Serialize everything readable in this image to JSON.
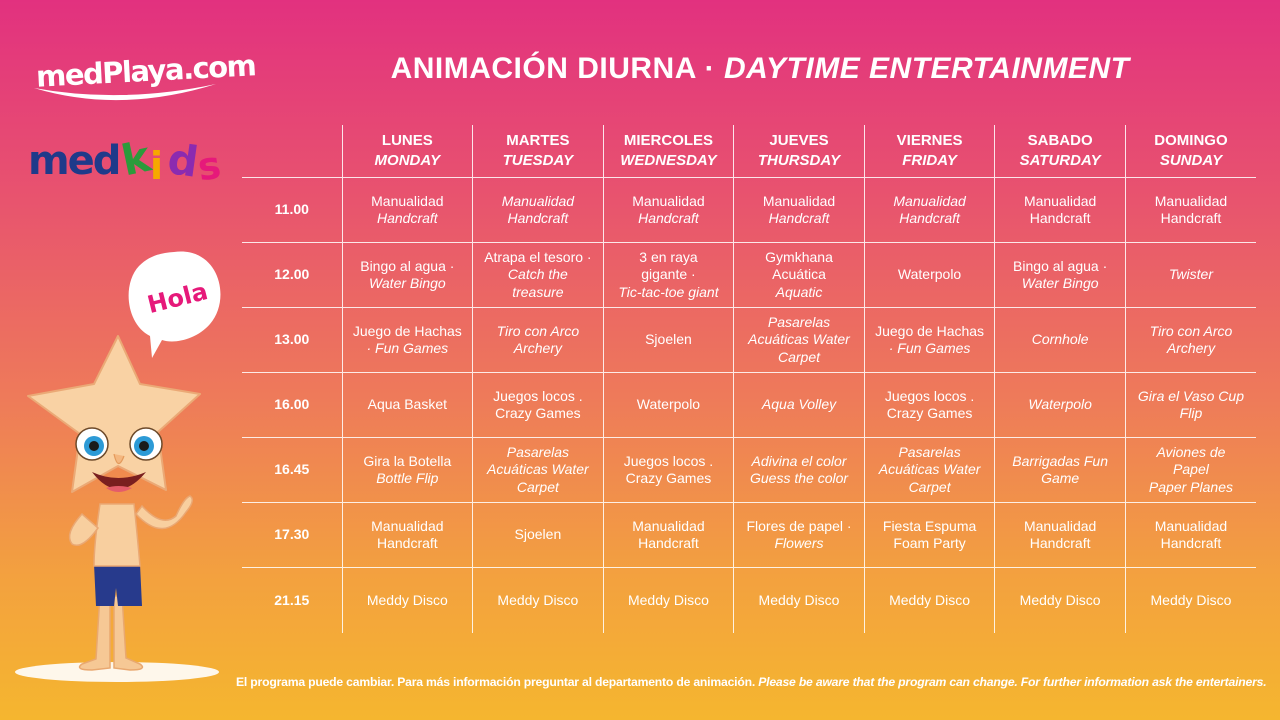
{
  "brand": {
    "logo_text": "medPlaya.com",
    "kids_logo": "medkids"
  },
  "mascot": {
    "speech": "Hola"
  },
  "title": {
    "es": "ANIMACIÓN DIURNA ·",
    "en": "DAYTIME ENTERTAINMENT"
  },
  "days": [
    {
      "es": "LUNES",
      "en": "MONDAY"
    },
    {
      "es": "MARTES",
      "en": "TUESDAY"
    },
    {
      "es": "MIERCOLES",
      "en": "WEDNESDAY"
    },
    {
      "es": "JUEVES",
      "en": "THURSDAY"
    },
    {
      "es": "VIERNES",
      "en": "FRIDAY"
    },
    {
      "es": "SABADO",
      "en": "SATURDAY"
    },
    {
      "es": "DOMINGO",
      "en": "SUNDAY"
    }
  ],
  "rows": [
    {
      "time": "11.00",
      "cells": [
        [
          {
            "t": "Manualidad",
            "i": false
          },
          {
            "t": "Handcraft",
            "i": true
          }
        ],
        [
          {
            "t": "Manualidad",
            "i": true
          },
          {
            "t": "Handcraft",
            "i": true
          }
        ],
        [
          {
            "t": "Manualidad",
            "i": false
          },
          {
            "t": "Handcraft",
            "i": true
          }
        ],
        [
          {
            "t": "Manualidad",
            "i": false
          },
          {
            "t": "Handcraft",
            "i": true
          }
        ],
        [
          {
            "t": "Manualidad",
            "i": true
          },
          {
            "t": "Handcraft",
            "i": true
          }
        ],
        [
          {
            "t": "Manualidad",
            "i": false
          },
          {
            "t": "Handcraft",
            "i": false
          }
        ],
        [
          {
            "t": "Manualidad",
            "i": false
          },
          {
            "t": "Handcraft",
            "i": false
          }
        ]
      ]
    },
    {
      "time": "12.00",
      "cells": [
        [
          {
            "t": "Bingo al agua ·",
            "i": false
          },
          {
            "t": "Water Bingo",
            "i": true
          }
        ],
        [
          {
            "t": "Atrapa el tesoro ·",
            "i": false
          },
          {
            "t": "Catch the",
            "i": true
          },
          {
            "t": "treasure",
            "i": true
          }
        ],
        [
          {
            "t": "3 en raya",
            "i": false
          },
          {
            "t": "gigante ·",
            "i": false
          },
          {
            "t": "Tic-tac-toe giant",
            "i": true
          }
        ],
        [
          {
            "t": "Gymkhana",
            "i": false
          },
          {
            "t": "Acuática",
            "i": false
          },
          {
            "t": "Aquatic",
            "i": true
          }
        ],
        [
          {
            "t": "Waterpolo",
            "i": false
          }
        ],
        [
          {
            "t": "Bingo al agua ·",
            "i": false
          },
          {
            "t": "Water Bingo",
            "i": true
          }
        ],
        [
          {
            "t": "Twister",
            "i": true
          }
        ]
      ]
    },
    {
      "time": "13.00",
      "cells": [
        [
          {
            "t": "Juego de Hachas",
            "i": false
          },
          {
            "t": "· Fun Games",
            "i": true
          }
        ],
        [
          {
            "t": "Tiro con Arco",
            "i": true
          },
          {
            "t": "Archery",
            "i": true
          }
        ],
        [
          {
            "t": "Sjoelen",
            "i": false
          }
        ],
        [
          {
            "t": "Pasarelas",
            "i": true
          },
          {
            "t": "Acuáticas Water",
            "i": true
          },
          {
            "t": "Carpet",
            "i": true
          }
        ],
        [
          {
            "t": "Juego de Hachas",
            "i": false
          },
          {
            "t": "· Fun Games",
            "i": true
          }
        ],
        [
          {
            "t": "Cornhole",
            "i": true
          }
        ],
        [
          {
            "t": "Tiro con Arco",
            "i": true
          },
          {
            "t": "Archery",
            "i": true
          }
        ]
      ]
    },
    {
      "time": "16.00",
      "cells": [
        [
          {
            "t": "Aqua Basket",
            "i": false
          }
        ],
        [
          {
            "t": "Juegos locos .",
            "i": false
          },
          {
            "t": "Crazy Games",
            "i": false
          }
        ],
        [
          {
            "t": "Waterpolo",
            "i": false
          }
        ],
        [
          {
            "t": "Aqua Volley",
            "i": true
          }
        ],
        [
          {
            "t": "Juegos locos .",
            "i": false
          },
          {
            "t": "Crazy Games",
            "i": false
          }
        ],
        [
          {
            "t": "Waterpolo",
            "i": true
          }
        ],
        [
          {
            "t": "Gira el Vaso Cup",
            "i": true
          },
          {
            "t": "Flip",
            "i": true
          }
        ]
      ]
    },
    {
      "time": "16.45",
      "cells": [
        [
          {
            "t": "Gira la Botella",
            "i": false
          },
          {
            "t": "Bottle Flip",
            "i": true
          }
        ],
        [
          {
            "t": "Pasarelas",
            "i": true
          },
          {
            "t": "Acuáticas Water",
            "i": true
          },
          {
            "t": "Carpet",
            "i": true
          }
        ],
        [
          {
            "t": "Juegos locos .",
            "i": false
          },
          {
            "t": "Crazy Games",
            "i": false
          }
        ],
        [
          {
            "t": "Adivina el color",
            "i": true
          },
          {
            "t": "Guess the color",
            "i": true
          }
        ],
        [
          {
            "t": "Pasarelas",
            "i": true
          },
          {
            "t": "Acuáticas Water",
            "i": true
          },
          {
            "t": "Carpet",
            "i": true
          }
        ],
        [
          {
            "t": "Barrigadas  Fun",
            "i": true
          },
          {
            "t": "Game",
            "i": true
          }
        ],
        [
          {
            "t": "Aviones de",
            "i": true
          },
          {
            "t": "Papel",
            "i": true
          },
          {
            "t": "Paper Planes",
            "i": true
          }
        ]
      ]
    },
    {
      "time": "17.30",
      "cells": [
        [
          {
            "t": "Manualidad",
            "i": false
          },
          {
            "t": "Handcraft",
            "i": false
          }
        ],
        [
          {
            "t": "Sjoelen",
            "i": false
          }
        ],
        [
          {
            "t": "Manualidad",
            "i": false
          },
          {
            "t": "Handcraft",
            "i": false
          }
        ],
        [
          {
            "t": "Flores de papel ·",
            "i": false
          },
          {
            "t": "Flowers",
            "i": true
          }
        ],
        [
          {
            "t": "Fiesta Espuma",
            "i": false
          },
          {
            "t": "Foam Party",
            "i": false
          }
        ],
        [
          {
            "t": "Manualidad",
            "i": false
          },
          {
            "t": "Handcraft",
            "i": false
          }
        ],
        [
          {
            "t": "Manualidad",
            "i": false
          },
          {
            "t": "Handcraft",
            "i": false
          }
        ]
      ]
    },
    {
      "time": "21.15",
      "cells": [
        [
          {
            "t": "Meddy Disco",
            "i": false
          }
        ],
        [
          {
            "t": "Meddy Disco",
            "i": false
          }
        ],
        [
          {
            "t": "Meddy Disco",
            "i": false
          }
        ],
        [
          {
            "t": "Meddy Disco",
            "i": false
          }
        ],
        [
          {
            "t": "Meddy Disco",
            "i": false
          }
        ],
        [
          {
            "t": "Meddy Disco",
            "i": false
          }
        ],
        [
          {
            "t": "Meddy Disco",
            "i": false
          }
        ]
      ]
    }
  ],
  "footer": {
    "es": "El programa puede cambiar. Para más información preguntar  al departamento de animación.",
    "en": "Please be aware that the program can change. For further information ask the entertainers."
  }
}
